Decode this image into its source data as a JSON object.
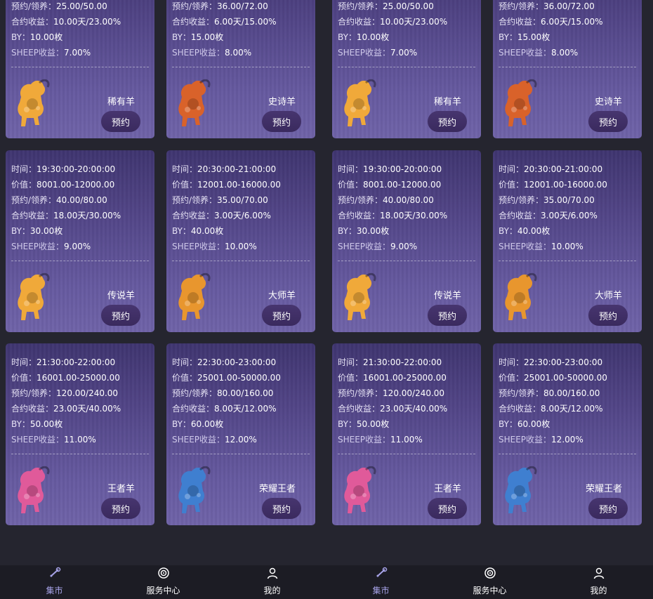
{
  "labels": {
    "time": "时间：",
    "value": "价值：",
    "reserve": "预约/领养：",
    "contract": "合约收益：",
    "by": "BY：",
    "sheep": "SHEEP收益："
  },
  "button_label": "预约",
  "cards": [
    {
      "time": "",
      "value": "",
      "reserve": "25.00/50.00",
      "contract": "10.00天/23.00%",
      "by": "10.00枚",
      "sheep": "7.00%",
      "grade": "稀有羊",
      "icon": "sheep-icon",
      "color": "#f0a93a"
    },
    {
      "time": "",
      "value": "",
      "reserve": "36.00/72.00",
      "contract": "6.00天/15.00%",
      "by": "15.00枚",
      "sheep": "8.00%",
      "grade": "史诗羊",
      "icon": "sheep-icon",
      "color": "#d9622a"
    },
    {
      "time": "19:30:00-20:00:00",
      "value": "8001.00-12000.00",
      "reserve": "40.00/80.00",
      "contract": "18.00天/30.00%",
      "by": "30.00枚",
      "sheep": "9.00%",
      "grade": "传说羊",
      "icon": "sheep-icon",
      "color": "#f0a93a"
    },
    {
      "time": "20:30:00-21:00:00",
      "value": "12001.00-16000.00",
      "reserve": "35.00/70.00",
      "contract": "3.00天/6.00%",
      "by": "40.00枚",
      "sheep": "10.00%",
      "grade": "大师羊",
      "icon": "sheep-icon",
      "color": "#e8962e"
    },
    {
      "time": "21:30:00-22:00:00",
      "value": "16001.00-25000.00",
      "reserve": "120.00/240.00",
      "contract": "23.00天/40.00%",
      "by": "50.00枚",
      "sheep": "11.00%",
      "grade": "王者羊",
      "icon": "sheep-icon",
      "color": "#e05a9a"
    },
    {
      "time": "22:30:00-23:00:00",
      "value": "25001.00-50000.00",
      "reserve": "80.00/160.00",
      "contract": "8.00天/12.00%",
      "by": "60.00枚",
      "sheep": "12.00%",
      "grade": "荣耀王者",
      "icon": "sheep-icon",
      "color": "#3f7fd0"
    }
  ],
  "tabs": [
    {
      "label": "集市",
      "icon": "market-icon"
    },
    {
      "label": "服务中心",
      "icon": "service-icon"
    },
    {
      "label": "我的",
      "icon": "user-icon"
    }
  ],
  "colors": {
    "active_tab": "#a7a3e8",
    "background": "#25252f"
  }
}
